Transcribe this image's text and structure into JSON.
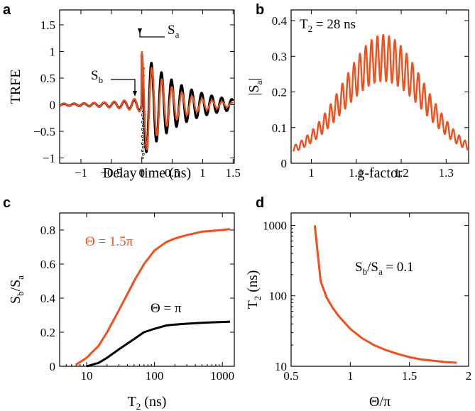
{
  "colors": {
    "orange": "#f0501e",
    "black": "#000000"
  },
  "chart_data": [
    {
      "panel": "a",
      "type": "line",
      "xlabel": "Delay time (ns)",
      "ylabel": "TRFE",
      "xlim": [
        -1.35,
        1.52
      ],
      "ylim": [
        -1.1,
        1.78
      ],
      "xticks": [
        -1,
        -0.5,
        0,
        0.5,
        1,
        1.5
      ],
      "xticklabels": [
        "−1",
        "−0.5",
        "0",
        "0.5",
        "1",
        "1.5"
      ],
      "yticks": [
        -1,
        -0.5,
        0,
        0.5,
        1,
        1.5
      ],
      "yticklabels": [
        "−1",
        "−0.5",
        "0",
        "0.5",
        "1",
        "1.5"
      ],
      "annotations": [
        {
          "text": "S",
          "subscript": "a",
          "x": 0.05,
          "y": 1.2
        },
        {
          "text": "S",
          "subscript": "b",
          "x": -0.9,
          "y": 0.52
        }
      ],
      "series": [
        {
          "color": "black",
          "style": "dots+line",
          "x_range": [
            -1.35,
            1.5
          ],
          "pulse_amplitude": 1.0,
          "pre_amplitude": 0.11,
          "period": 0.165,
          "post_decay": 0.65
        },
        {
          "color": "orange",
          "style": "line",
          "x_range": [
            -1.35,
            1.5
          ],
          "pulse_amplitude": 1.0,
          "pre_amplitude": 0.13,
          "period": 0.165,
          "post_decay": 0.45
        }
      ]
    },
    {
      "panel": "b",
      "type": "line",
      "xlabel": "g-factor",
      "ylabel": "|S",
      "ylabel_sub": "a",
      "ylabel_end": "|",
      "xlim": [
        0.955,
        1.35
      ],
      "ylim": [
        0,
        0.43
      ],
      "xticks": [
        1,
        1.1,
        1.2,
        1.3
      ],
      "xticklabels": [
        "1",
        "1.1",
        "1.2",
        "1.3"
      ],
      "yticks": [
        0,
        0.1,
        0.2,
        0.3,
        0.4
      ],
      "yticklabels": [
        "0",
        "0.1",
        "0.2",
        "0.3",
        "0.4"
      ],
      "annotations": [
        {
          "text": "T",
          "subscript": "2",
          "suffix": " = 28 ns"
        }
      ],
      "series": [
        {
          "color": "orange",
          "x_range": [
            0.96,
            1.35
          ],
          "center": 1.16,
          "peak": 0.36,
          "base": 0.02,
          "oscillations": 30
        }
      ]
    },
    {
      "panel": "c",
      "type": "line",
      "xscale": "log",
      "xlabel": "T",
      "xlabel_sub": "2",
      "xlabel_end": " (ns)",
      "ylabel": "S",
      "ylabel_sub1": "b",
      "ylabel_mid": "/S",
      "ylabel_sub2": "a",
      "xlim": [
        4,
        1500
      ],
      "ylim": [
        0,
        0.9
      ],
      "xticks": [
        10,
        100,
        1000
      ],
      "xticklabels": [
        "10",
        "100",
        "1000"
      ],
      "yticks": [
        0,
        0.2,
        0.4,
        0.6,
        0.8
      ],
      "yticklabels": [
        "0",
        "0.2",
        "0.4",
        "0.6",
        "0.8"
      ],
      "series": [
        {
          "name": "Θ = 1.5π",
          "color": "orange",
          "x": [
            7,
            10,
            15,
            20,
            30,
            50,
            70,
            100,
            150,
            200,
            300,
            500,
            700,
            1000,
            1300
          ],
          "y": [
            0.01,
            0.05,
            0.12,
            0.2,
            0.33,
            0.5,
            0.6,
            0.68,
            0.73,
            0.75,
            0.77,
            0.79,
            0.795,
            0.8,
            0.805
          ]
        },
        {
          "name": "Θ = π",
          "color": "black",
          "x": [
            10,
            15,
            20,
            30,
            50,
            70,
            100,
            150,
            200,
            300,
            500,
            700,
            1000,
            1300
          ],
          "y": [
            0.0,
            0.02,
            0.05,
            0.1,
            0.16,
            0.2,
            0.22,
            0.24,
            0.245,
            0.25,
            0.255,
            0.258,
            0.26,
            0.262
          ]
        }
      ]
    },
    {
      "panel": "d",
      "type": "line",
      "yscale": "log",
      "xlabel": "Θ/π",
      "ylabel": "T",
      "ylabel_sub": "2",
      "ylabel_end": " (ns)",
      "xlim": [
        0.5,
        2.0
      ],
      "ylim": [
        10,
        1500
      ],
      "xticks": [
        0.5,
        1,
        1.5,
        2
      ],
      "xticklabels": [
        "0.5",
        "1",
        "1.5",
        "2"
      ],
      "yticks": [
        10,
        100,
        1000
      ],
      "yticklabels": [
        "10",
        "100",
        "1000"
      ],
      "annotations": [
        {
          "text": "S",
          "subscript": "b",
          "mid": "/S",
          "subscript2": "a",
          "suffix": " = 0.1"
        }
      ],
      "series": [
        {
          "color": "orange",
          "x": [
            0.7,
            0.75,
            0.8,
            0.85,
            0.9,
            1.0,
            1.1,
            1.2,
            1.3,
            1.4,
            1.5,
            1.6,
            1.7,
            1.8,
            1.9
          ],
          "y": [
            1000,
            160,
            95,
            68,
            52,
            34,
            25,
            20,
            17,
            15,
            13.5,
            12.5,
            12,
            11.5,
            11.2
          ]
        }
      ]
    }
  ]
}
